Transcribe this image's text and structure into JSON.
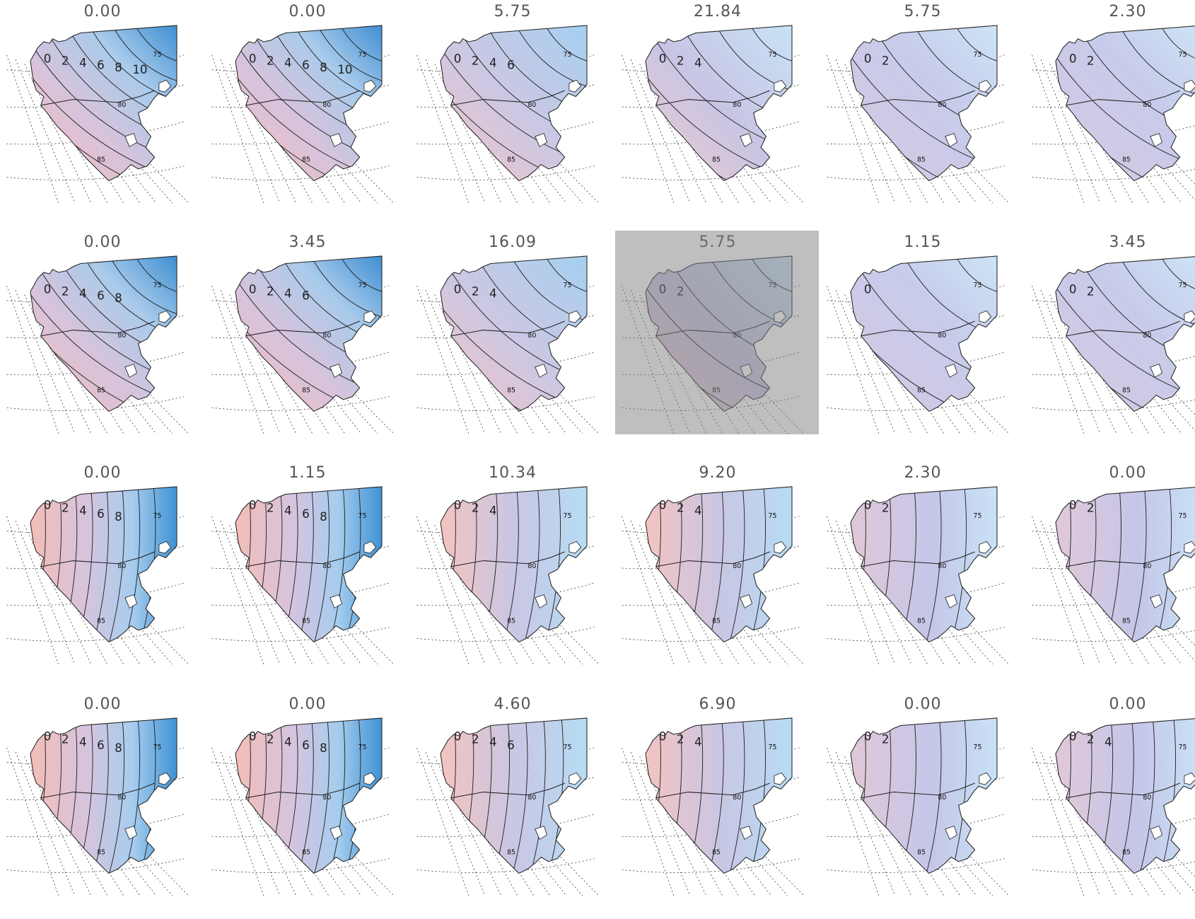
{
  "panels": [
    {
      "title": "0.00",
      "style": "strong",
      "labels": [
        "0",
        "2",
        "4",
        "6",
        "8",
        "10"
      ]
    },
    {
      "title": "0.00",
      "style": "strong",
      "labels": [
        "0",
        "2",
        "4",
        "6",
        "8",
        "10"
      ]
    },
    {
      "title": "5.75",
      "style": "mid",
      "labels": [
        "0",
        "2",
        "4",
        "6"
      ]
    },
    {
      "title": "21.84",
      "style": "weak",
      "labels": [
        "0",
        "2",
        "4"
      ]
    },
    {
      "title": "5.75",
      "style": "flat",
      "labels": [
        "0",
        "2"
      ]
    },
    {
      "title": "2.30",
      "style": "flat",
      "labels": [
        "0",
        "2"
      ]
    },
    {
      "title": "0.00",
      "style": "strong",
      "labels": [
        "0",
        "2",
        "4",
        "6",
        "8"
      ]
    },
    {
      "title": "3.45",
      "style": "strong",
      "labels": [
        "0",
        "2",
        "4",
        "6"
      ]
    },
    {
      "title": "16.09",
      "style": "mid",
      "labels": [
        "0",
        "2",
        "4"
      ]
    },
    {
      "title": "5.75",
      "style": "weak",
      "labels": [
        "0",
        "2"
      ],
      "highlight": true
    },
    {
      "title": "1.15",
      "style": "flat",
      "labels": [
        "0"
      ]
    },
    {
      "title": "3.45",
      "style": "flat",
      "labels": [
        "0",
        "2"
      ]
    },
    {
      "title": "0.00",
      "style": "strongE",
      "labels": [
        "0",
        "2",
        "4",
        "6",
        "8"
      ]
    },
    {
      "title": "1.15",
      "style": "strongE",
      "labels": [
        "0",
        "2",
        "4",
        "6",
        "8"
      ]
    },
    {
      "title": "10.34",
      "style": "midE",
      "labels": [
        "0",
        "2",
        "4"
      ]
    },
    {
      "title": "9.20",
      "style": "midE",
      "labels": [
        "0",
        "2",
        "4"
      ]
    },
    {
      "title": "2.30",
      "style": "flatE",
      "labels": [
        "0",
        "2"
      ]
    },
    {
      "title": "0.00",
      "style": "flatE",
      "labels": [
        "0",
        "2"
      ]
    },
    {
      "title": "0.00",
      "style": "strongE",
      "labels": [
        "0",
        "2",
        "4",
        "6",
        "8"
      ]
    },
    {
      "title": "0.00",
      "style": "strongE",
      "labels": [
        "0",
        "2",
        "4",
        "6",
        "8"
      ]
    },
    {
      "title": "4.60",
      "style": "midE",
      "labels": [
        "0",
        "2",
        "4",
        "6"
      ]
    },
    {
      "title": "6.90",
      "style": "midE",
      "labels": [
        "0",
        "2",
        "4"
      ]
    },
    {
      "title": "0.00",
      "style": "flatE",
      "labels": [
        "0",
        "2"
      ]
    },
    {
      "title": "0.00",
      "style": "flatE",
      "labels": [
        "0",
        "2",
        "4"
      ]
    }
  ],
  "ticks": {
    "lat75": "75",
    "lat80": "80",
    "lat85": "85"
  },
  "colors": {
    "pink": "#f6c9c4",
    "blue": "#3a8fd3",
    "lavender": "#c9c7e6",
    "pale": "#cfe6f6"
  }
}
